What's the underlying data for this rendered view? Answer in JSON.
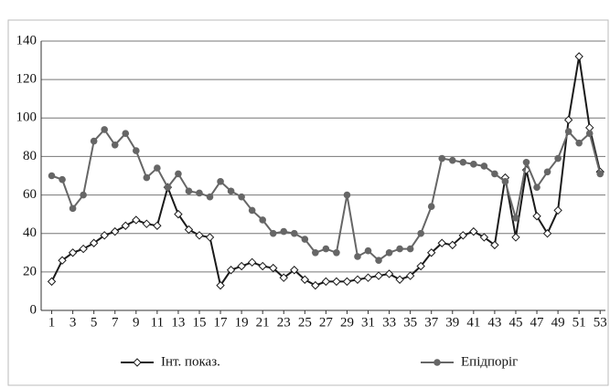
{
  "chart_data": {
    "type": "line",
    "x": [
      1,
      2,
      3,
      4,
      5,
      6,
      7,
      8,
      9,
      10,
      11,
      12,
      13,
      14,
      15,
      16,
      17,
      18,
      19,
      20,
      21,
      22,
      23,
      24,
      25,
      26,
      27,
      28,
      29,
      30,
      31,
      32,
      33,
      34,
      35,
      36,
      37,
      38,
      39,
      40,
      41,
      42,
      43,
      44,
      45,
      46,
      47,
      48,
      49,
      50,
      51,
      52,
      53
    ],
    "xlim": [
      0,
      53.5
    ],
    "xticks": [
      1,
      3,
      5,
      7,
      9,
      11,
      13,
      15,
      17,
      19,
      21,
      23,
      25,
      27,
      29,
      31,
      33,
      35,
      37,
      39,
      41,
      43,
      45,
      47,
      49,
      51,
      53
    ],
    "ylim": [
      0,
      140
    ],
    "yticks": [
      0,
      20,
      40,
      60,
      80,
      100,
      120,
      140
    ],
    "grid": true,
    "legend": "bottom",
    "series": [
      {
        "name": "Інт. показ.",
        "color": "#1a1a1a",
        "marker": "diamond",
        "values": [
          15,
          26,
          30,
          32,
          35,
          39,
          41,
          44,
          47,
          45,
          44,
          64,
          50,
          42,
          39,
          38,
          13,
          21,
          23,
          25,
          23,
          22,
          17,
          21,
          16,
          13,
          15,
          15,
          15,
          16,
          17,
          18,
          19,
          16,
          18,
          23,
          30,
          35,
          34,
          39,
          41,
          38,
          34,
          69,
          38,
          73,
          49,
          40,
          52,
          99,
          132,
          95,
          72
        ]
      },
      {
        "name": "Епідпоріг",
        "color": "#666666",
        "marker": "circle",
        "values": [
          70,
          68,
          53,
          60,
          88,
          94,
          86,
          92,
          83,
          69,
          74,
          64,
          71,
          62,
          61,
          59,
          67,
          62,
          59,
          52,
          47,
          40,
          41,
          40,
          37,
          30,
          32,
          30,
          60,
          28,
          31,
          26,
          30,
          32,
          32,
          40,
          54,
          79,
          78,
          77,
          76,
          75,
          71,
          67,
          48,
          77,
          64,
          72,
          79,
          93,
          87,
          92,
          71
        ]
      }
    ]
  }
}
